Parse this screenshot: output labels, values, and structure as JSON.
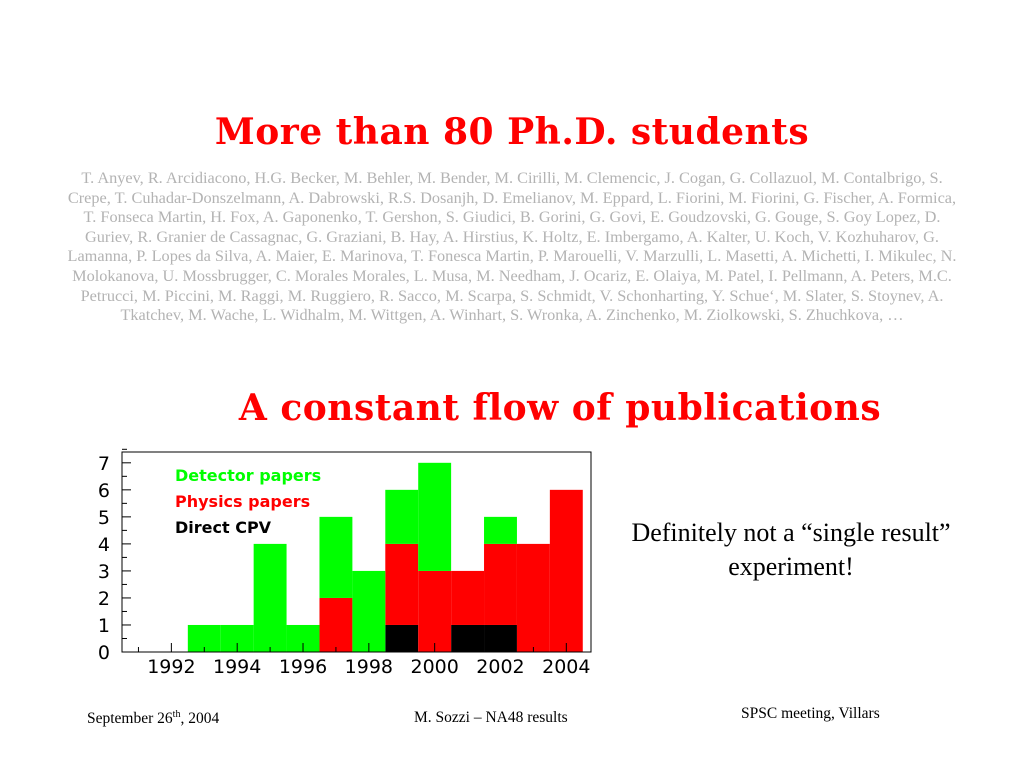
{
  "titles": {
    "students": "More than 80 Ph.D. students",
    "publications": "A constant flow of publications"
  },
  "students_list": "T. Anyev, R. Arcidiacono, H.G. Becker, M. Behler, M. Bender, M. Cirilli, M. Clemencic, J. Cogan, G. Collazuol, M. Contalbrigo, S. Crepe, T. Cuhadar-Donszelmann, A. Dabrowski, R.S. Dosanjh, D. Emelianov, M. Eppard, L. Fiorini, M. Fiorini, G. Fischer, A. Formica, T. Fonseca Martin, H. Fox, A. Gaponenko, T. Gershon, S. Giudici, B. Gorini, G. Govi, E. Goudzovski, G. Gouge, S. Goy Lopez, D. Guriev, R. Granier de Cassagnac, G. Graziani, B. Hay, A. Hirstius, K. Holtz, E. Imbergamo, A. Kalter, U. Koch, V. Kozhuharov, G. Lamanna, P. Lopes da Silva, A. Maier, E. Marinova, T. Fonesca Martin, P. Marouelli, V. Marzulli, L. Masetti, A. Michetti, I. Mikulec, N. Molokanova, U. Mossbrugger, C. Morales Morales, L. Musa, M. Needham, J. Ocariz, E. Olaiya, M. Patel, I. Pellmann, A. Peters, M.C. Petrucci, M. Piccini, M. Raggi, M. Ruggiero, R. Sacco, M. Scarpa, S. Schmidt, V. Schonharting, Y. Schue‘, M. Slater, S. Stoynev, A. Tkatchev, M. Wache, L. Widhalm, M. Wittgen, A. Winhart, S. Wronka, A. Zinchenko, M. Ziolkowski, S. Zhuchkova, …",
  "remark": "Definitely not a “single result” experiment!",
  "footer": {
    "date_prefix": "September 26",
    "date_sup": "th",
    "date_suffix": ", 2004",
    "author": "M. Sozzi – NA48 results",
    "meeting": "SPSC meeting, Villars"
  },
  "colors": {
    "title": "#ff0000",
    "detector": "#00ff00",
    "physics": "#ff0000",
    "cpv": "#000000",
    "names": "#b3b3b3"
  },
  "chart_data": {
    "type": "bar",
    "stacked": true,
    "x": [
      1991,
      1992,
      1993,
      1994,
      1995,
      1996,
      1997,
      1998,
      1999,
      2000,
      2001,
      2002,
      2003,
      2004
    ],
    "x_ticks": [
      1992,
      1994,
      1996,
      1998,
      2000,
      2002,
      2004
    ],
    "x_tick_labels": [
      "1992",
      "1994",
      "1996",
      "1998",
      "2000",
      "2002",
      "2004"
    ],
    "xlim": [
      1990.5,
      2004.75
    ],
    "ylim": [
      0,
      7.4
    ],
    "y_ticks": [
      0,
      1,
      2,
      3,
      4,
      5,
      6,
      7
    ],
    "y_tick_labels": [
      "0",
      "1",
      "2",
      "3",
      "4",
      "5",
      "6",
      "7"
    ],
    "series": [
      {
        "name": "Direct CPV",
        "color": "#000000",
        "values": [
          0,
          0,
          0,
          0,
          0,
          0,
          0,
          0,
          1,
          0,
          1,
          1,
          0,
          0
        ]
      },
      {
        "name": "Physics papers",
        "color": "#ff0000",
        "values": [
          0,
          0,
          0,
          0,
          0,
          0,
          2,
          0,
          3,
          3,
          2,
          3,
          4,
          6
        ]
      },
      {
        "name": "Detector papers",
        "color": "#00ff00",
        "values": [
          0,
          0,
          1,
          1,
          4,
          1,
          3,
          3,
          2,
          4,
          0,
          1,
          0,
          0
        ]
      }
    ],
    "legend_order": [
      "Detector papers",
      "Physics papers",
      "Direct CPV"
    ],
    "legend_position": "top-left",
    "grid": false
  }
}
